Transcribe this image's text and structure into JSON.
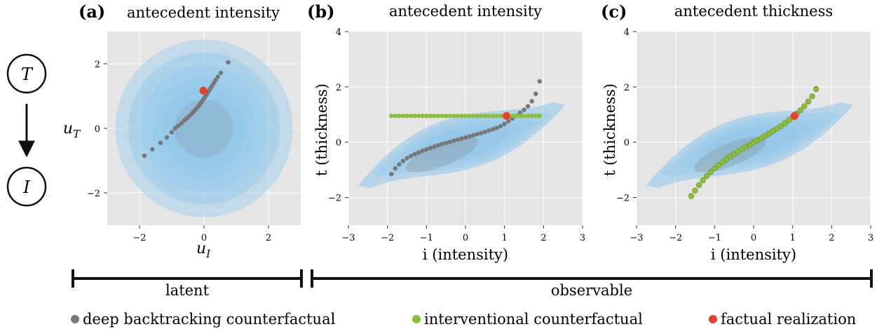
{
  "colors": {
    "panel_bg": "#e5e5e5",
    "grid": "#ffffff",
    "density": "#8ec7ec",
    "deep_backtracking": "#777777",
    "interventional": "#8cbd3f",
    "factual": "#e5412e",
    "ink": "#111111"
  },
  "graph": {
    "top_node": "T",
    "bottom_node": "I"
  },
  "panels": [
    {
      "letter": "(a)",
      "title": "antecedent intensity",
      "xlabel_main": "u",
      "xlabel_sub": "I",
      "ylabel_main": "u",
      "ylabel_sub": "T",
      "xticks": [
        "−2",
        "0",
        "2"
      ],
      "yticks": [
        "2",
        "0",
        "−2"
      ]
    },
    {
      "letter": "(b)",
      "title": "antecedent intensity",
      "xlabel": "i (intensity)",
      "ylabel": "t (thickness)",
      "xticks": [
        "−3",
        "−2",
        "−1",
        "0",
        "1",
        "2",
        "3"
      ],
      "yticks": [
        "4",
        "2",
        "0",
        "−2"
      ]
    },
    {
      "letter": "(c)",
      "title": "antecedent thickness",
      "xlabel": "i (intensity)",
      "ylabel": "t (thickness)",
      "xticks": [
        "−3",
        "−2",
        "−1",
        "0",
        "1",
        "2",
        "3"
      ],
      "yticks": [
        "4",
        "2",
        "0",
        "−2"
      ]
    }
  ],
  "brackets": {
    "left": "latent",
    "right": "observable"
  },
  "legend": [
    {
      "label": "deep backtracking counterfactual",
      "color": "#777777"
    },
    {
      "label": "interventional counterfactual",
      "color": "#8cbd3f"
    },
    {
      "label": "factual realization",
      "color": "#e5412e"
    }
  ],
  "chart_data": [
    {
      "type": "scatter",
      "panel": "a",
      "xlim": [
        -3,
        3
      ],
      "ylim": [
        -3,
        3
      ],
      "grid": true,
      "density": "standard normal over (u_I, u_T)",
      "series": [
        {
          "name": "deep backtracking counterfactual",
          "x": [
            -1.85,
            -1.6,
            -1.35,
            -1.15,
            -1.0,
            -0.9,
            -0.8,
            -0.7,
            -0.62,
            -0.55,
            -0.48,
            -0.42,
            -0.36,
            -0.3,
            -0.25,
            -0.2,
            -0.15,
            -0.1,
            -0.06,
            -0.02,
            0.02,
            0.06,
            0.1,
            0.15,
            0.2,
            0.25,
            0.3,
            0.36,
            0.43,
            0.52,
            0.75
          ],
          "y": [
            -0.85,
            -0.65,
            -0.45,
            -0.28,
            -0.12,
            0.0,
            0.08,
            0.16,
            0.24,
            0.3,
            0.36,
            0.42,
            0.48,
            0.54,
            0.6,
            0.66,
            0.72,
            0.78,
            0.84,
            0.9,
            0.96,
            1.02,
            1.08,
            1.16,
            1.24,
            1.32,
            1.4,
            1.5,
            1.6,
            1.72,
            2.05
          ]
        },
        {
          "name": "factual realization",
          "x": [
            -0.02
          ],
          "y": [
            1.17
          ]
        }
      ]
    },
    {
      "type": "scatter",
      "panel": "b",
      "xlim": [
        -3,
        3
      ],
      "ylim": [
        -3,
        4
      ],
      "grid": true,
      "series": [
        {
          "name": "deep backtracking counterfactual",
          "x": [
            -1.9,
            -1.8,
            -1.7,
            -1.6,
            -1.5,
            -1.4,
            -1.3,
            -1.2,
            -1.1,
            -1.0,
            -0.9,
            -0.8,
            -0.7,
            -0.6,
            -0.5,
            -0.4,
            -0.3,
            -0.2,
            -0.1,
            0.0,
            0.1,
            0.2,
            0.3,
            0.4,
            0.5,
            0.6,
            0.7,
            0.8,
            0.9,
            1.0,
            1.1,
            1.2,
            1.3,
            1.4,
            1.5,
            1.6,
            1.7,
            1.8,
            1.9
          ],
          "y": [
            -1.15,
            -0.95,
            -0.8,
            -0.68,
            -0.58,
            -0.5,
            -0.43,
            -0.37,
            -0.31,
            -0.26,
            -0.21,
            -0.16,
            -0.11,
            -0.07,
            -0.03,
            0.01,
            0.05,
            0.09,
            0.13,
            0.17,
            0.21,
            0.25,
            0.29,
            0.33,
            0.37,
            0.42,
            0.47,
            0.52,
            0.58,
            0.66,
            0.76,
            0.86,
            0.96,
            1.06,
            1.17,
            1.3,
            1.48,
            1.75,
            2.2
          ]
        },
        {
          "name": "interventional counterfactual",
          "x": [
            -1.9,
            -1.8,
            -1.7,
            -1.6,
            -1.5,
            -1.4,
            -1.3,
            -1.2,
            -1.1,
            -1.0,
            -0.9,
            -0.8,
            -0.7,
            -0.6,
            -0.5,
            -0.4,
            -0.3,
            -0.2,
            -0.1,
            0.0,
            0.1,
            0.2,
            0.3,
            0.4,
            0.5,
            0.6,
            0.7,
            0.8,
            0.9,
            1.0,
            1.1,
            1.2,
            1.3,
            1.4,
            1.5,
            1.6,
            1.7,
            1.8,
            1.9
          ],
          "y": [
            0.95,
            0.95,
            0.95,
            0.95,
            0.95,
            0.95,
            0.95,
            0.95,
            0.95,
            0.95,
            0.95,
            0.95,
            0.95,
            0.95,
            0.95,
            0.95,
            0.95,
            0.95,
            0.95,
            0.95,
            0.95,
            0.95,
            0.95,
            0.95,
            0.95,
            0.95,
            0.95,
            0.95,
            0.95,
            0.95,
            0.95,
            0.95,
            0.95,
            0.95,
            0.95,
            0.95,
            0.95,
            0.95,
            0.95
          ]
        },
        {
          "name": "factual realization",
          "x": [
            1.05
          ],
          "y": [
            0.95
          ]
        }
      ]
    },
    {
      "type": "scatter",
      "panel": "c",
      "xlim": [
        -3,
        3
      ],
      "ylim": [
        -3,
        4
      ],
      "grid": true,
      "series": [
        {
          "name": "deep backtracking counterfactual",
          "x": [
            -1.6,
            -1.5,
            -1.4,
            -1.3,
            -1.2,
            -1.1,
            -1.0,
            -0.9,
            -0.8,
            -0.7,
            -0.6,
            -0.5,
            -0.4,
            -0.3,
            -0.2,
            -0.1,
            0.0,
            0.1,
            0.2,
            0.3,
            0.4,
            0.5,
            0.6,
            0.7,
            0.8,
            0.9,
            1.0,
            1.1,
            1.2,
            1.3,
            1.4,
            1.5,
            1.6
          ],
          "y": [
            -1.95,
            -1.75,
            -1.55,
            -1.38,
            -1.22,
            -1.08,
            -0.95,
            -0.83,
            -0.72,
            -0.62,
            -0.52,
            -0.43,
            -0.34,
            -0.25,
            -0.17,
            -0.09,
            -0.01,
            0.07,
            0.15,
            0.23,
            0.31,
            0.4,
            0.49,
            0.58,
            0.68,
            0.79,
            0.9,
            1.02,
            1.15,
            1.3,
            1.47,
            1.66,
            1.92
          ]
        },
        {
          "name": "interventional counterfactual",
          "x": [
            -1.6,
            -1.5,
            -1.4,
            -1.3,
            -1.2,
            -1.1,
            -1.0,
            -0.9,
            -0.8,
            -0.7,
            -0.6,
            -0.5,
            -0.4,
            -0.3,
            -0.2,
            -0.1,
            0.0,
            0.1,
            0.2,
            0.3,
            0.4,
            0.5,
            0.6,
            0.7,
            0.8,
            0.9,
            1.0,
            1.1,
            1.2,
            1.3,
            1.4,
            1.5,
            1.6
          ],
          "y": [
            -1.95,
            -1.75,
            -1.55,
            -1.38,
            -1.22,
            -1.08,
            -0.95,
            -0.83,
            -0.72,
            -0.62,
            -0.52,
            -0.43,
            -0.34,
            -0.25,
            -0.17,
            -0.09,
            -0.01,
            0.07,
            0.15,
            0.23,
            0.31,
            0.4,
            0.49,
            0.58,
            0.68,
            0.79,
            0.9,
            1.02,
            1.15,
            1.3,
            1.47,
            1.66,
            1.92
          ]
        },
        {
          "name": "factual realization",
          "x": [
            1.05
          ],
          "y": [
            0.95
          ]
        }
      ]
    }
  ]
}
